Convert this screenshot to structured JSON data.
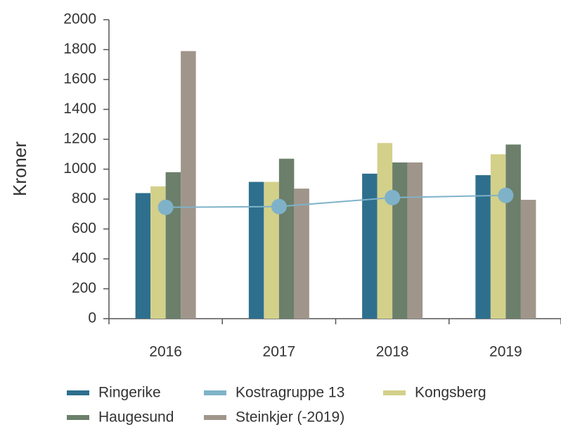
{
  "chart_data": {
    "type": "bar",
    "y_label": "Kroner",
    "categories": [
      "2016",
      "2017",
      "2018",
      "2019"
    ],
    "series": [
      {
        "name": "Ringerike",
        "color": "#2e6f8e",
        "values": [
          840,
          915,
          970,
          960
        ]
      },
      {
        "name": "Kostragruppe 13",
        "color": "#7fb2c9",
        "type": "line",
        "values": [
          745,
          750,
          810,
          825
        ]
      },
      {
        "name": "Kongsberg",
        "color": "#d3d08a",
        "values": [
          885,
          915,
          1175,
          1100
        ]
      },
      {
        "name": "Haugesund",
        "color": "#6b7f6b",
        "values": [
          980,
          1070,
          1045,
          1165
        ]
      },
      {
        "name": "Steinkjer (-2019)",
        "color": "#a0958a",
        "values": [
          1790,
          870,
          1045,
          795
        ]
      }
    ],
    "ylim": [
      0,
      2000
    ],
    "yticks": [
      0,
      200,
      400,
      600,
      800,
      1000,
      1200,
      1400,
      1600,
      1800,
      2000
    ]
  }
}
